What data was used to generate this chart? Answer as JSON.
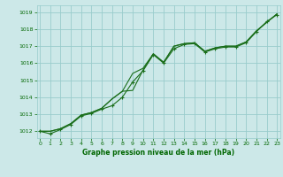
{
  "xlabel": "Graphe pression niveau de la mer (hPa)",
  "x": [
    0,
    1,
    2,
    3,
    4,
    5,
    6,
    7,
    8,
    9,
    10,
    11,
    12,
    13,
    14,
    15,
    16,
    17,
    18,
    19,
    20,
    21,
    22,
    23
  ],
  "series1": [
    1012.0,
    1011.85,
    1012.1,
    1012.4,
    1012.9,
    1013.05,
    1013.3,
    1013.5,
    1014.0,
    1014.9,
    1015.55,
    1016.5,
    1016.0,
    1016.85,
    1017.1,
    1017.15,
    1016.65,
    1016.85,
    1016.95,
    1016.95,
    1017.2,
    1017.85,
    1018.45,
    1018.85
  ],
  "series2": [
    1012.0,
    1012.0,
    1012.15,
    1012.45,
    1012.95,
    1013.1,
    1013.35,
    1013.9,
    1014.35,
    1014.4,
    1015.6,
    1016.55,
    1016.05,
    1017.0,
    1017.15,
    1017.2,
    1016.7,
    1016.9,
    1017.0,
    1017.0,
    1017.25,
    1017.9,
    1018.4,
    1018.9
  ],
  "series3": [
    1012.0,
    1012.0,
    1012.15,
    1012.45,
    1012.95,
    1013.1,
    1013.35,
    1013.9,
    1014.35,
    1015.4,
    1015.7,
    1016.55,
    1016.05,
    1017.0,
    1017.15,
    1017.2,
    1016.7,
    1016.9,
    1017.0,
    1017.0,
    1017.25,
    1017.9,
    1018.4,
    1018.9
  ],
  "line_color": "#1a6e1a",
  "bg_color": "#cce8e8",
  "grid_color": "#99cccc",
  "label_color": "#006600",
  "ylim_min": 1011.6,
  "ylim_max": 1019.4,
  "yticks": [
    1012,
    1013,
    1014,
    1015,
    1016,
    1017,
    1018,
    1019
  ],
  "xticks": [
    0,
    1,
    2,
    3,
    4,
    5,
    6,
    7,
    8,
    9,
    10,
    11,
    12,
    13,
    14,
    15,
    16,
    17,
    18,
    19,
    20,
    21,
    22,
    23
  ]
}
